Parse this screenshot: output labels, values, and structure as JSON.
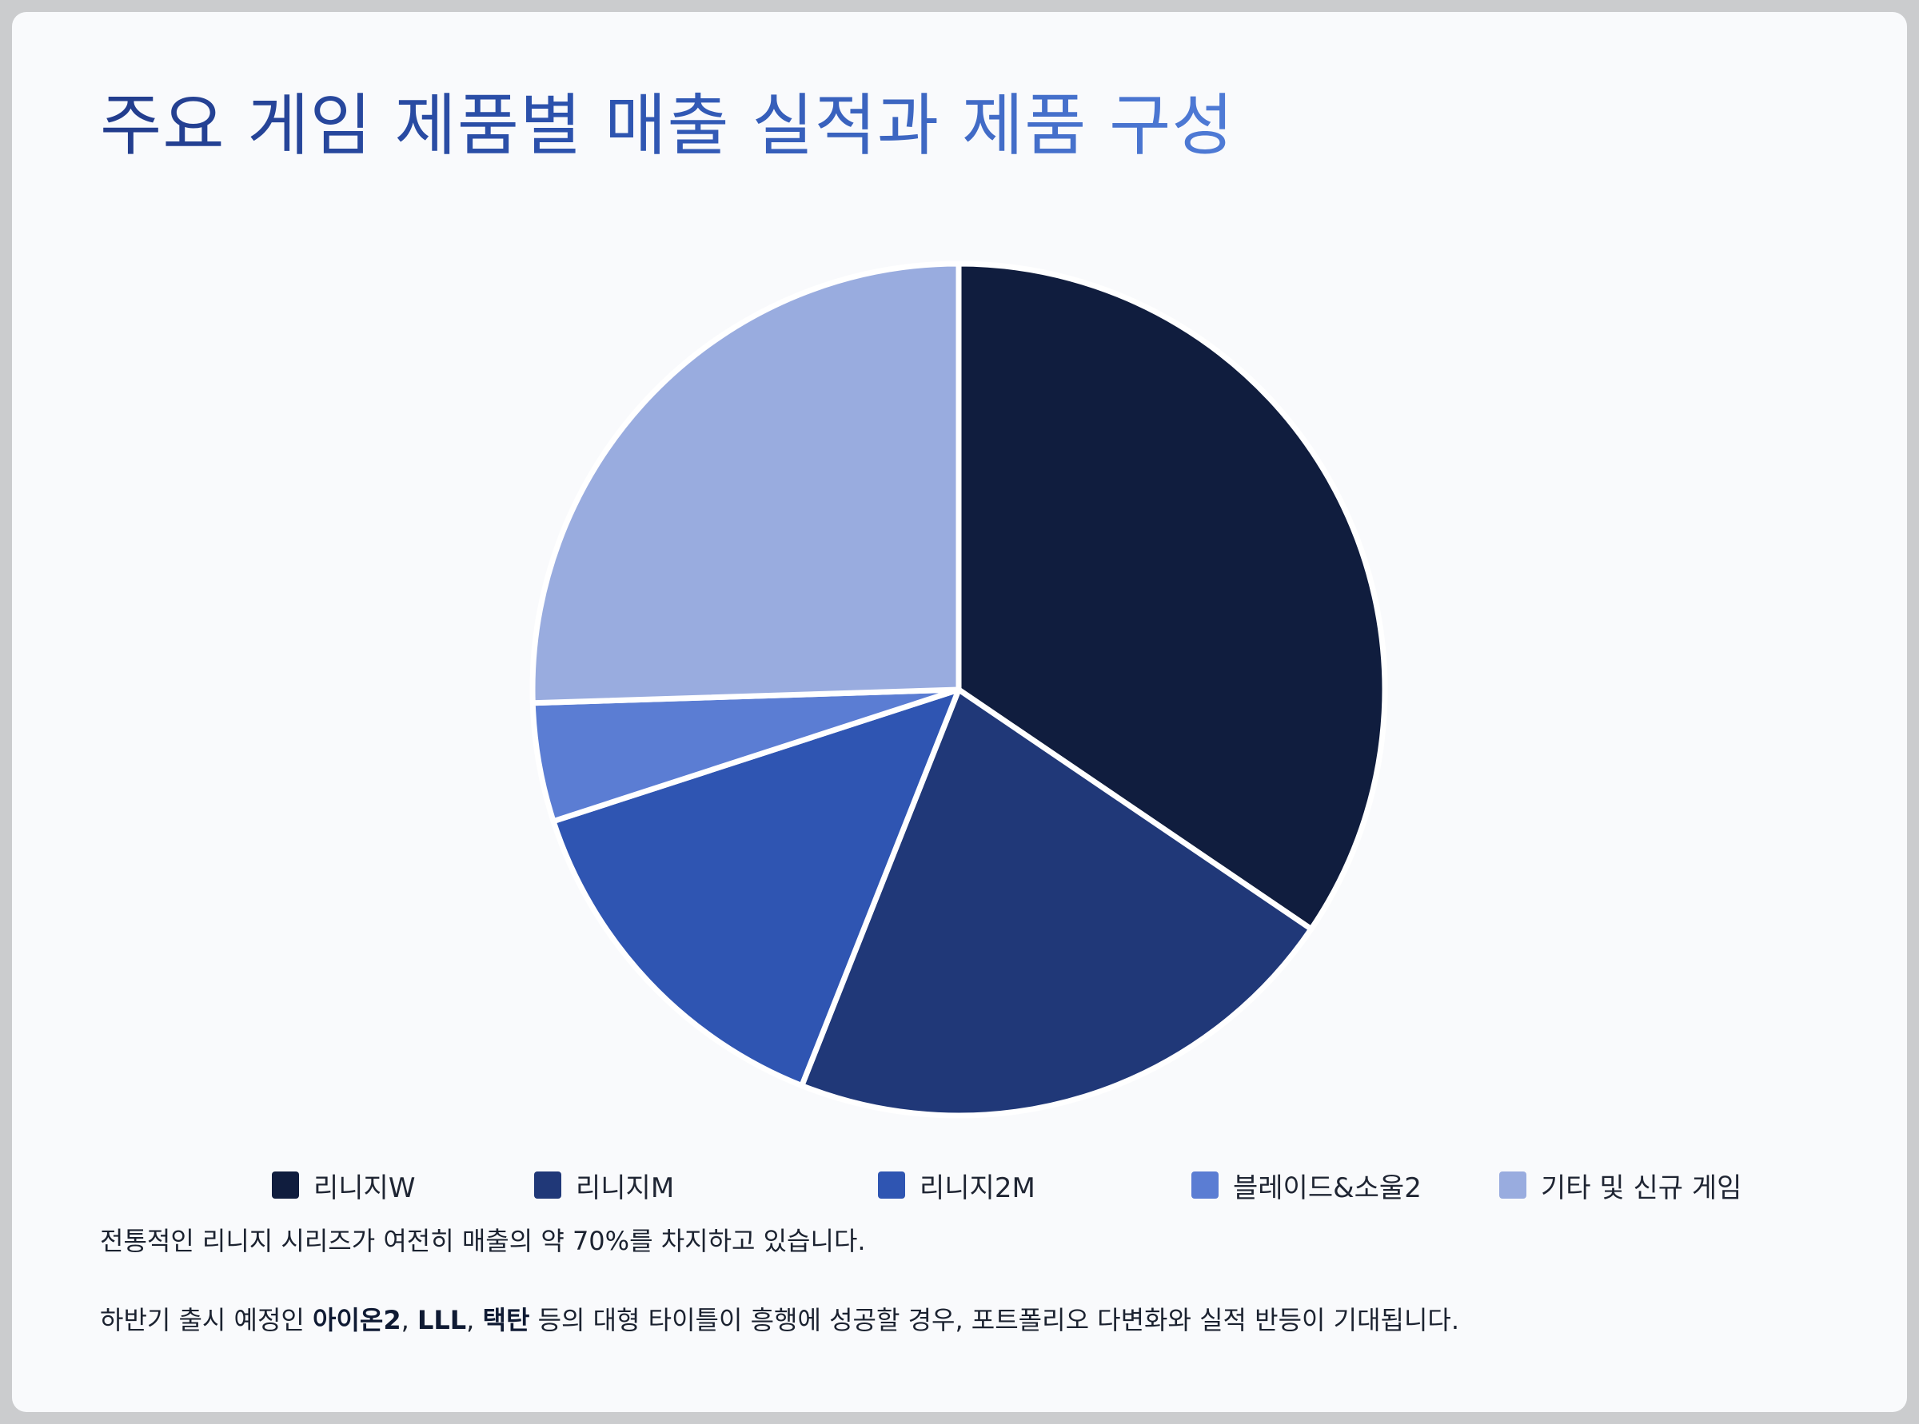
{
  "title": "주요 게임 제품별 매출 실적과 제품 구성",
  "chart_data": {
    "type": "pie",
    "title": "주요 게임 제품별 매출 실적과 제품 구성",
    "categories": [
      "리니지W",
      "리니지M",
      "리니지2M",
      "블레이드&소울2",
      "기타 및 신규 게임"
    ],
    "values": [
      34.5,
      21.5,
      14.0,
      4.5,
      25.5
    ],
    "unit": "%",
    "start": "12 o'clock",
    "direction": "clockwise",
    "colors": [
      "#101d3e",
      "#203878",
      "#2f55b2",
      "#5b7dd3",
      "#99acdf"
    ],
    "legend_position": "bottom"
  },
  "notes": {
    "line1": "전통적인 리니지 시리즈가 여전히 매출의 약 70%를 차지하고 있습니다.",
    "line2_prefix": "하반기 출시 예정인 ",
    "line2_bold1": "아이온2",
    "line2_sep1": ", ",
    "line2_bold2": "LLL",
    "line2_sep2": ", ",
    "line2_bold3": "택탄",
    "line2_suffix": " 등의 대형 타이틀이 흥행에 성공할 경우, 포트폴리오 다변화와 실적 반등이 기대됩니다."
  }
}
